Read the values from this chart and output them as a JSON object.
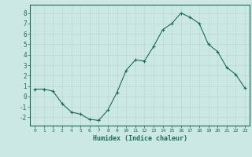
{
  "x": [
    0,
    1,
    2,
    3,
    4,
    5,
    6,
    7,
    8,
    9,
    10,
    11,
    12,
    13,
    14,
    15,
    16,
    17,
    18,
    19,
    20,
    21,
    22,
    23
  ],
  "y": [
    0.7,
    0.7,
    0.5,
    -0.7,
    -1.5,
    -1.7,
    -2.2,
    -2.3,
    -1.3,
    0.4,
    2.5,
    3.5,
    3.4,
    4.8,
    6.4,
    7.0,
    8.0,
    7.6,
    7.0,
    5.0,
    4.3,
    2.8,
    2.1,
    0.8
  ],
  "xlabel": "Humidex (Indice chaleur)",
  "xlim": [
    -0.5,
    23.5
  ],
  "ylim": [
    -2.8,
    8.8
  ],
  "yticks": [
    -2,
    -1,
    0,
    1,
    2,
    3,
    4,
    5,
    6,
    7,
    8
  ],
  "xticks": [
    0,
    1,
    2,
    3,
    4,
    5,
    6,
    7,
    8,
    9,
    10,
    11,
    12,
    13,
    14,
    15,
    16,
    17,
    18,
    19,
    20,
    21,
    22,
    23
  ],
  "line_color": "#1a6b5a",
  "marker": "+",
  "bg_color": "#cce8e4",
  "grid_color": "#b8d8d4",
  "axis_color": "#1a6b5a",
  "label_color": "#1a6b5a",
  "font": "monospace"
}
